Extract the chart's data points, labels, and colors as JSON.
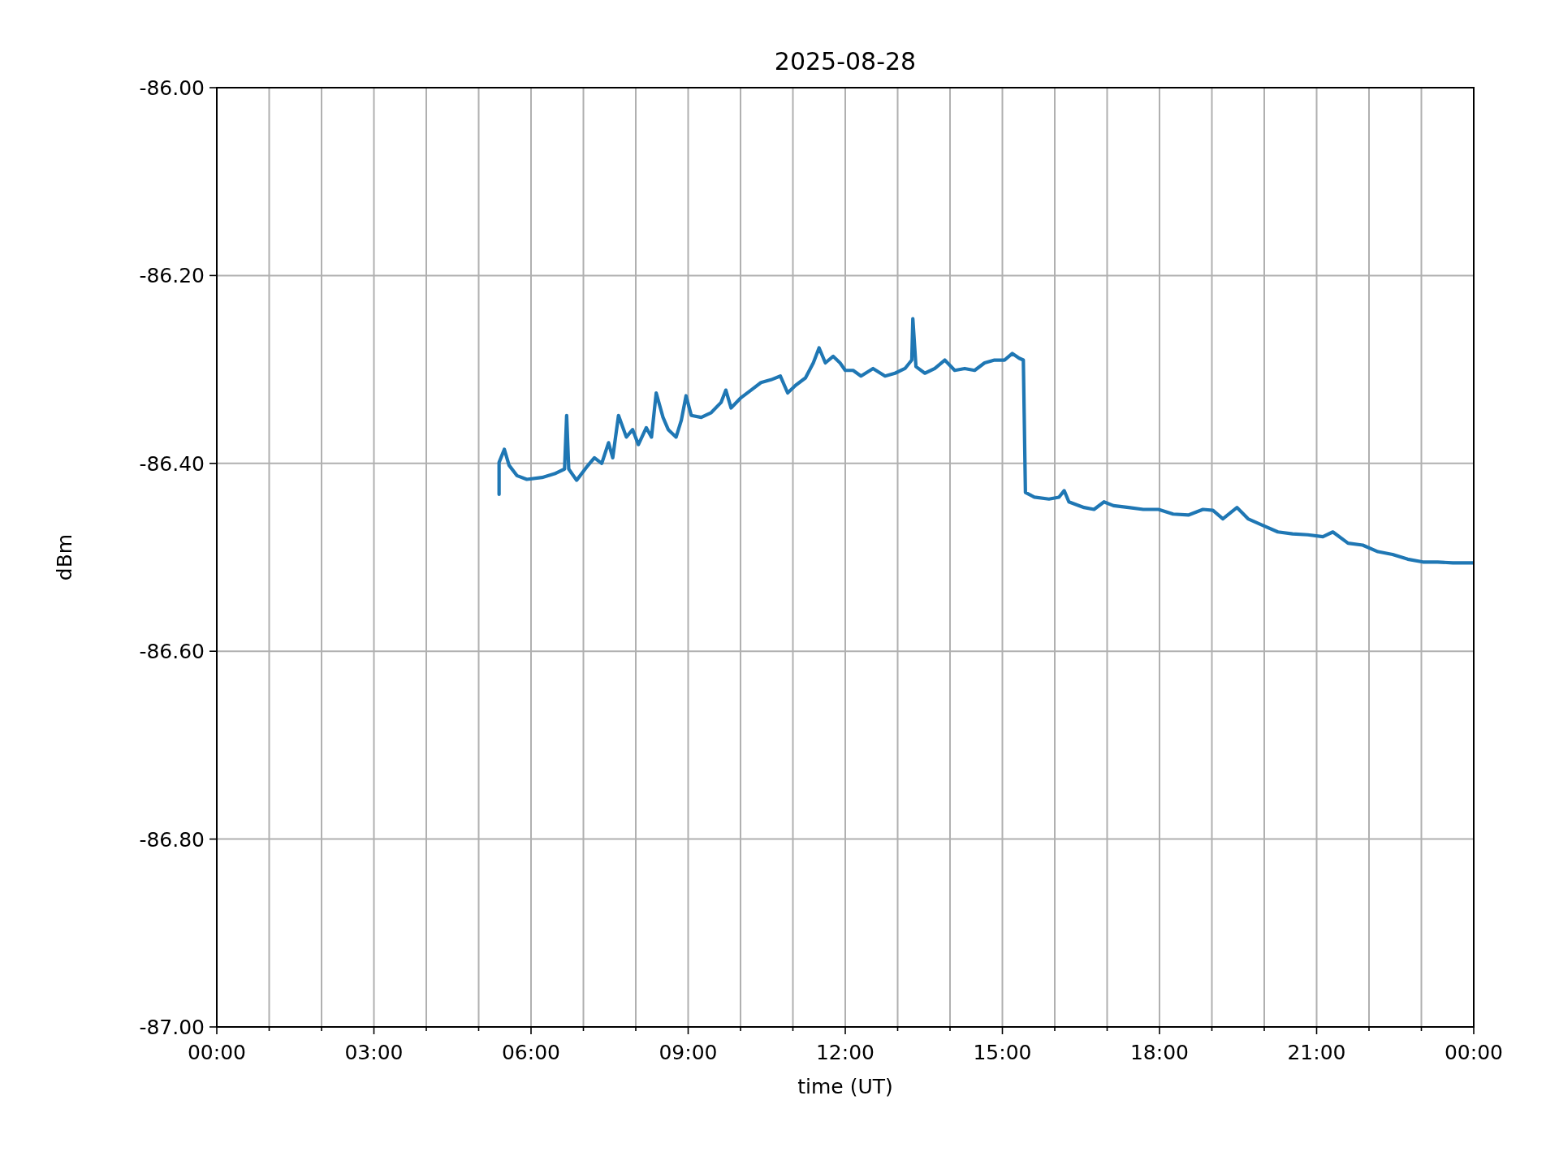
{
  "chart_data": {
    "type": "line",
    "title": "2025-08-28",
    "xlabel": "time (UT)",
    "ylabel": "dBm",
    "x": [
      5.39,
      5.39,
      5.49,
      5.58,
      5.73,
      5.92,
      6.21,
      6.45,
      6.64,
      6.68,
      6.72,
      6.87,
      7.06,
      7.21,
      7.35,
      7.48,
      7.56,
      7.67,
      7.82,
      7.94,
      8.05,
      8.2,
      8.3,
      8.39,
      8.52,
      8.62,
      8.77,
      8.87,
      8.96,
      9.06,
      9.25,
      9.44,
      9.63,
      9.72,
      9.82,
      10.01,
      10.2,
      10.39,
      10.58,
      10.76,
      10.9,
      11.05,
      11.24,
      11.39,
      11.5,
      11.62,
      11.77,
      11.9,
      12.0,
      12.15,
      12.3,
      12.53,
      12.76,
      12.95,
      13.14,
      13.27,
      13.29,
      13.35,
      13.52,
      13.71,
      13.9,
      14.09,
      14.28,
      14.47,
      14.66,
      14.85,
      15.04,
      15.19,
      15.32,
      15.4,
      15.44,
      15.61,
      15.89,
      16.08,
      16.18,
      16.27,
      16.56,
      16.75,
      16.94,
      17.12,
      17.41,
      17.69,
      17.98,
      18.26,
      18.55,
      18.83,
      19.02,
      19.21,
      19.48,
      19.69,
      19.97,
      20.26,
      20.54,
      20.83,
      21.12,
      21.31,
      21.6,
      21.88,
      22.17,
      22.45,
      22.74,
      23.03,
      23.31,
      23.6,
      24.0
    ],
    "series": [
      {
        "color": "#1f77b4",
        "values": [
          -86.433,
          -86.399,
          -86.385,
          -86.402,
          -86.413,
          -86.417,
          -86.415,
          -86.411,
          -86.406,
          -86.349,
          -86.406,
          -86.418,
          -86.404,
          -86.394,
          -86.4,
          -86.378,
          -86.394,
          -86.349,
          -86.372,
          -86.364,
          -86.38,
          -86.362,
          -86.372,
          -86.325,
          -86.351,
          -86.364,
          -86.372,
          -86.354,
          -86.328,
          -86.349,
          -86.351,
          -86.346,
          -86.335,
          -86.322,
          -86.341,
          -86.33,
          -86.322,
          -86.314,
          -86.311,
          -86.307,
          -86.325,
          -86.317,
          -86.309,
          -86.293,
          -86.277,
          -86.293,
          -86.286,
          -86.293,
          -86.301,
          -86.301,
          -86.307,
          -86.299,
          -86.307,
          -86.304,
          -86.299,
          -86.29,
          -86.246,
          -86.297,
          -86.304,
          -86.299,
          -86.29,
          -86.301,
          -86.299,
          -86.301,
          -86.293,
          -86.29,
          -86.29,
          -86.283,
          -86.288,
          -86.29,
          -86.431,
          -86.436,
          -86.438,
          -86.436,
          -86.429,
          -86.441,
          -86.447,
          -86.449,
          -86.441,
          -86.445,
          -86.447,
          -86.449,
          -86.449,
          -86.454,
          -86.455,
          -86.449,
          -86.45,
          -86.459,
          -86.447,
          -86.459,
          -86.466,
          -86.473,
          -86.475,
          -86.476,
          -86.478,
          -86.473,
          -86.485,
          -86.487,
          -86.494,
          -86.497,
          -86.502,
          -86.505,
          -86.505,
          -86.506,
          -86.506
        ]
      }
    ],
    "xlim": [
      0,
      24
    ],
    "xticks": [
      {
        "value": 0,
        "label": "00:00"
      },
      {
        "value": 1,
        "label": null
      },
      {
        "value": 2,
        "label": null
      },
      {
        "value": 3,
        "label": "03:00"
      },
      {
        "value": 4,
        "label": null
      },
      {
        "value": 5,
        "label": null
      },
      {
        "value": 6,
        "label": "06:00"
      },
      {
        "value": 7,
        "label": null
      },
      {
        "value": 8,
        "label": null
      },
      {
        "value": 9,
        "label": "09:00"
      },
      {
        "value": 10,
        "label": null
      },
      {
        "value": 11,
        "label": null
      },
      {
        "value": 12,
        "label": "12:00"
      },
      {
        "value": 13,
        "label": null
      },
      {
        "value": 14,
        "label": null
      },
      {
        "value": 15,
        "label": "15:00"
      },
      {
        "value": 16,
        "label": null
      },
      {
        "value": 17,
        "label": null
      },
      {
        "value": 18,
        "label": "18:00"
      },
      {
        "value": 19,
        "label": null
      },
      {
        "value": 20,
        "label": null
      },
      {
        "value": 21,
        "label": "21:00"
      },
      {
        "value": 22,
        "label": null
      },
      {
        "value": 23,
        "label": null
      },
      {
        "value": 24,
        "label": "00:00"
      }
    ],
    "ylim": [
      -87,
      -86
    ],
    "yticks": [
      {
        "value": -87,
        "label": "-87.00"
      },
      {
        "value": -86.8,
        "label": "-86.80"
      },
      {
        "value": -86.6,
        "label": "-86.60"
      },
      {
        "value": -86.4,
        "label": "-86.40"
      },
      {
        "value": -86.2,
        "label": "-86.20"
      },
      {
        "value": -86,
        "label": "-86.00"
      }
    ],
    "grid": true,
    "marker": "none",
    "line_style": "solid"
  }
}
